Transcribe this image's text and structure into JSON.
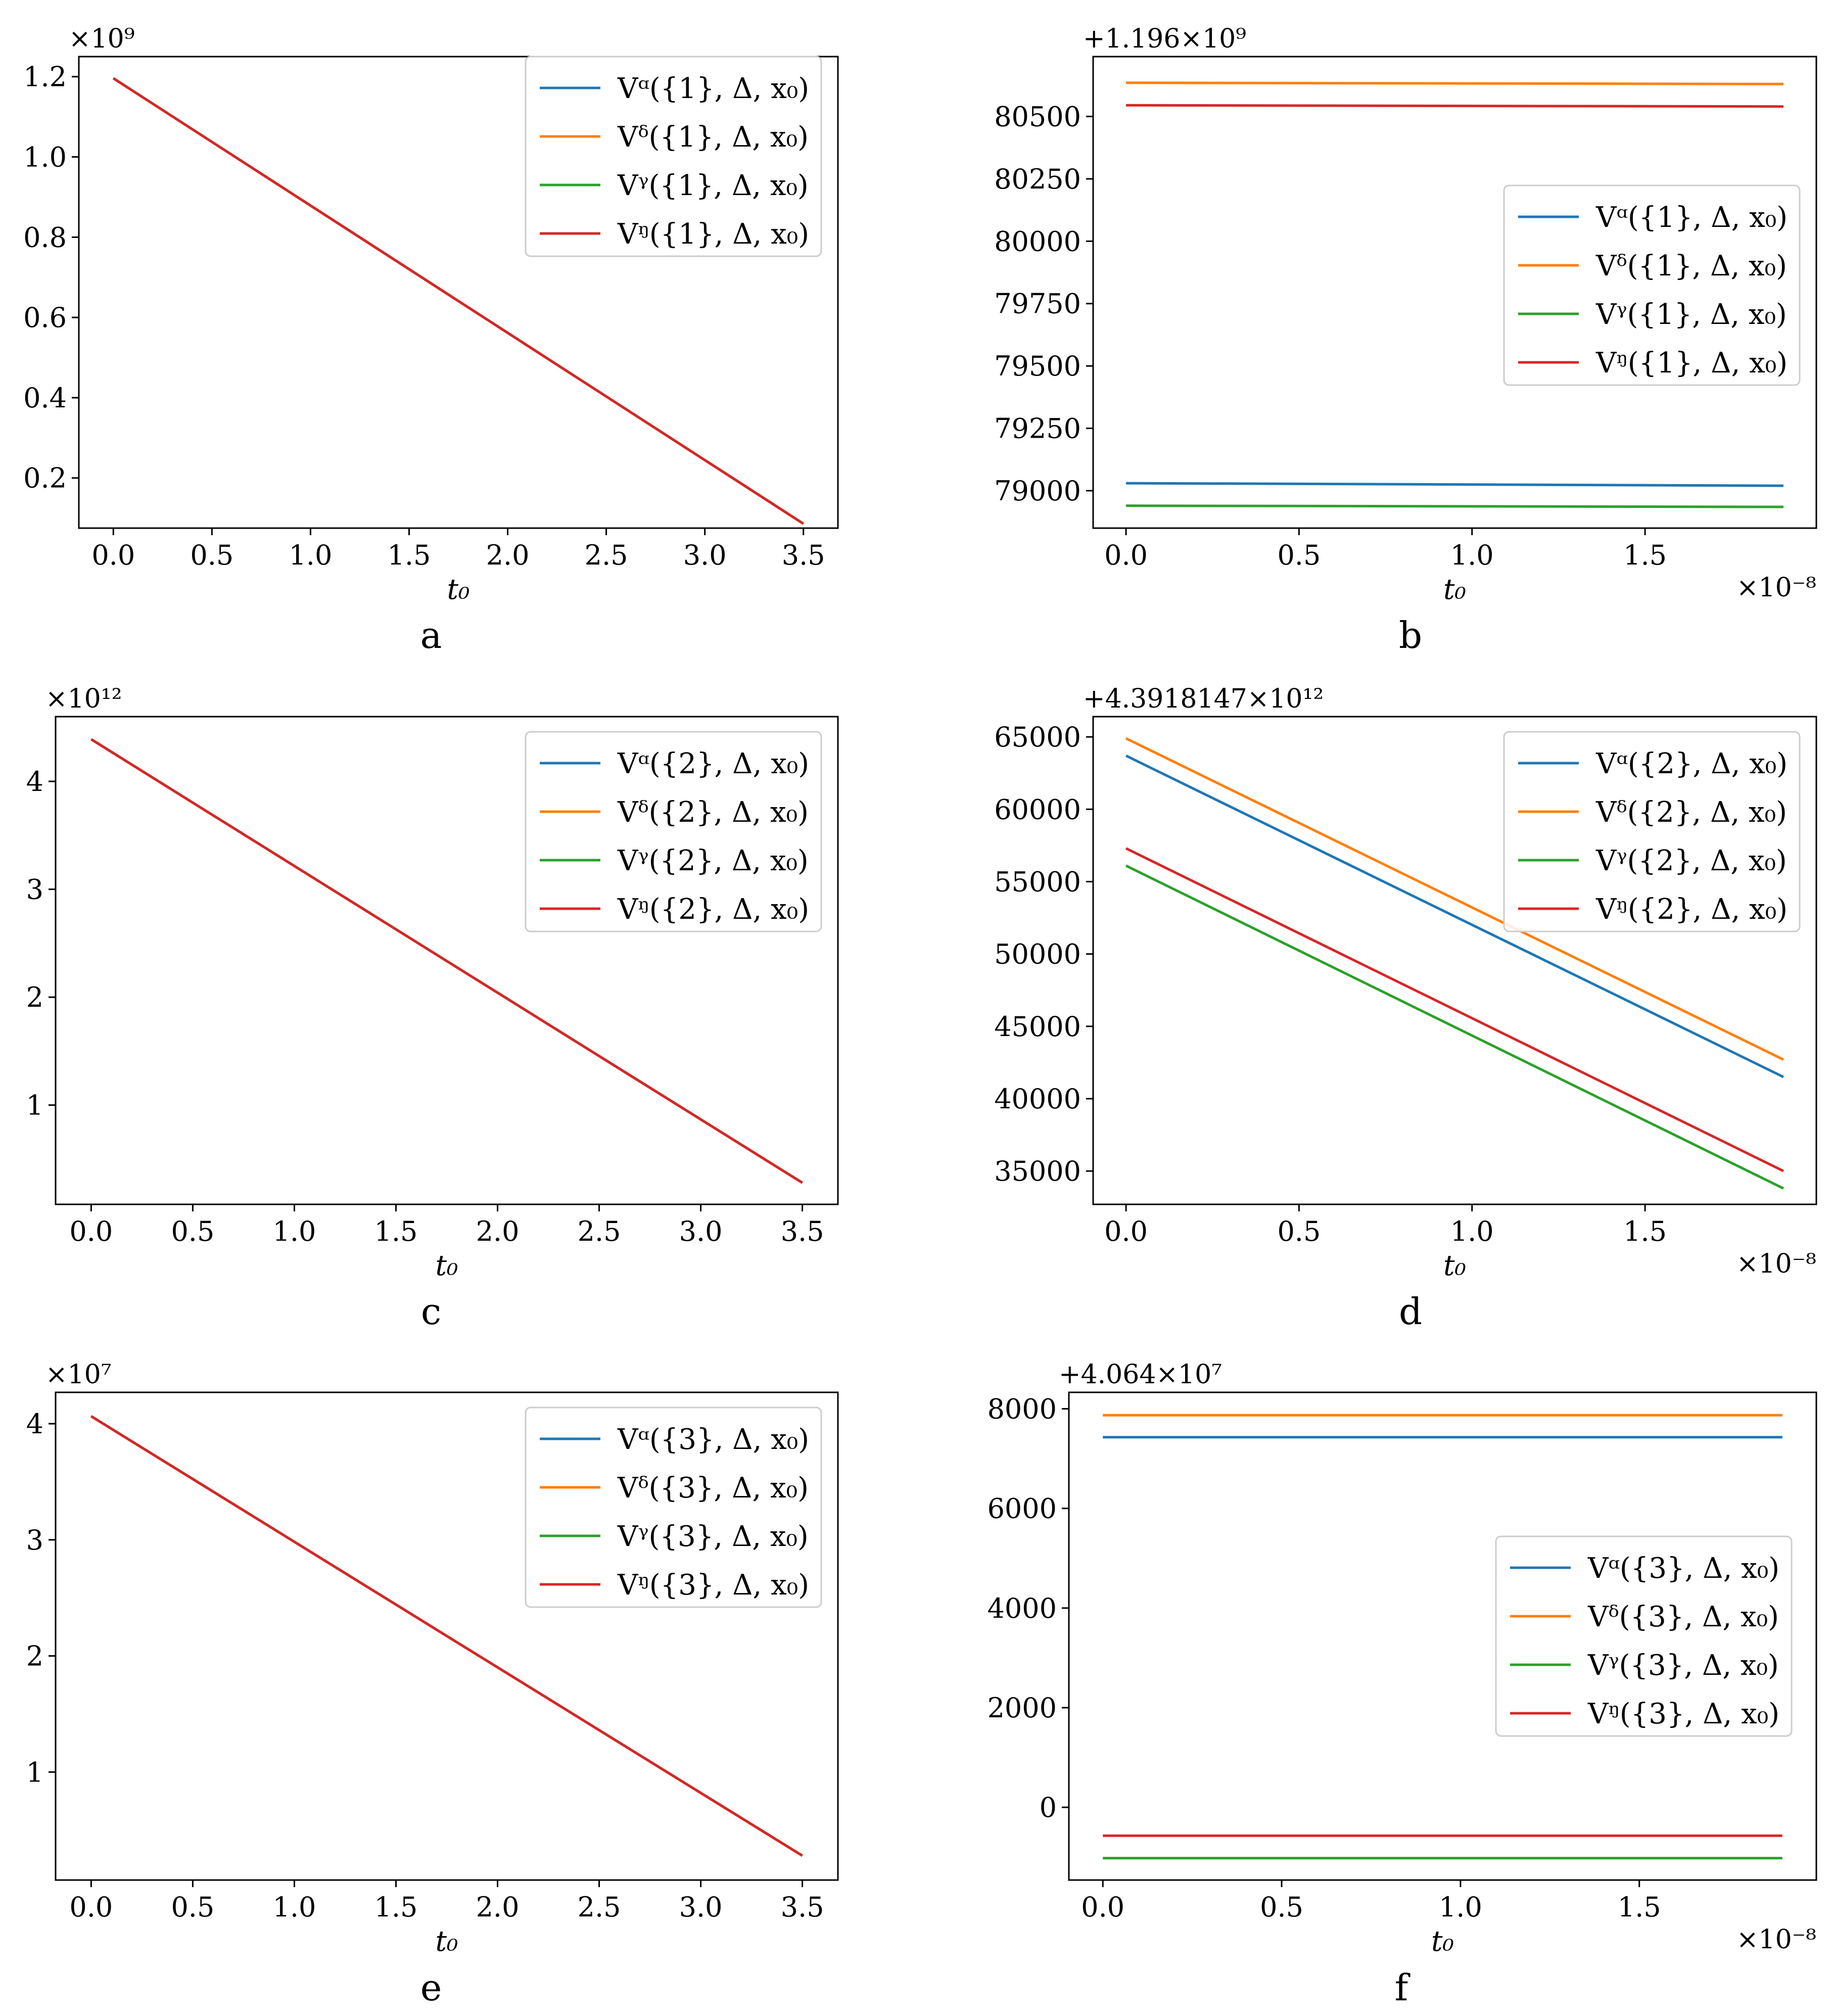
{
  "colors": {
    "alpha": "#1f77b4",
    "delta": "#ff7f0e",
    "zeta": "#2ca02c",
    "eta": "#d62728"
  },
  "chart_data": [
    {
      "panel": "a",
      "type": "line",
      "xlabel": "t₀",
      "ylabel": "",
      "xlim": [
        -0.175,
        3.675
      ],
      "ylim": [
        0.075,
        1.25
      ],
      "xticks": [
        0.0,
        0.5,
        1.0,
        1.5,
        2.0,
        2.5,
        3.0,
        3.5
      ],
      "xtick_labels": [
        "0.0",
        "0.5",
        "1.0",
        "1.5",
        "2.0",
        "2.5",
        "3.0",
        "3.5"
      ],
      "yticks": [
        0.2,
        0.4,
        0.6,
        0.8,
        1.0,
        1.2
      ],
      "ytick_labels": [
        "0.2",
        "0.4",
        "0.6",
        "0.8",
        "1.0",
        "1.2"
      ],
      "y_offset_text": "×10⁹",
      "x_offset_text": "",
      "legend_loc": "top-right",
      "series": [
        {
          "name": "Vᵅ({1}, Δ, x₀)",
          "color_key": "alpha",
          "x": [
            0.0,
            3.5
          ],
          "y": [
            1.196,
            0.086
          ]
        },
        {
          "name": "Vᵟ({1}, Δ, x₀)",
          "color_key": "delta",
          "x": [
            0.0,
            3.5
          ],
          "y": [
            1.196,
            0.086
          ]
        },
        {
          "name": "Vᵞ({1}, Δ, x₀)",
          "color_key": "zeta",
          "x": [
            0.0,
            3.5
          ],
          "y": [
            1.196,
            0.086
          ]
        },
        {
          "name": "Vᵑ({1}, Δ, x₀)",
          "color_key": "eta",
          "x": [
            0.0,
            3.5
          ],
          "y": [
            1.196,
            0.086
          ]
        }
      ]
    },
    {
      "panel": "b",
      "type": "line",
      "xlabel": "t₀",
      "ylabel": "",
      "xlim": [
        -0.095,
        1.995
      ],
      "ylim": [
        78850,
        80740
      ],
      "xticks": [
        0.0,
        0.5,
        1.0,
        1.5
      ],
      "xtick_labels": [
        "0.0",
        "0.5",
        "1.0",
        "1.5"
      ],
      "yticks": [
        79000,
        79250,
        79500,
        79750,
        80000,
        80250,
        80500
      ],
      "ytick_labels": [
        "79000",
        "79250",
        "79500",
        "79750",
        "80000",
        "80250",
        "80500"
      ],
      "y_offset_text": "+1.196×10⁹",
      "x_offset_text": "×10⁻⁸",
      "legend_loc": "center-right",
      "series": [
        {
          "name": "Vᵅ({1}, Δ, x₀)",
          "color_key": "alpha",
          "x": [
            0.0,
            1.9
          ],
          "y": [
            79030,
            79020
          ]
        },
        {
          "name": "Vᵟ({1}, Δ, x₀)",
          "color_key": "delta",
          "x": [
            0.0,
            1.9
          ],
          "y": [
            80635,
            80630
          ]
        },
        {
          "name": "Vᵞ({1}, Δ, x₀)",
          "color_key": "zeta",
          "x": [
            0.0,
            1.9
          ],
          "y": [
            78940,
            78935
          ]
        },
        {
          "name": "Vᵑ({1}, Δ, x₀)",
          "color_key": "eta",
          "x": [
            0.0,
            1.9
          ],
          "y": [
            80545,
            80540
          ]
        }
      ]
    },
    {
      "panel": "c",
      "type": "line",
      "xlabel": "t₀",
      "ylabel": "",
      "xlim": [
        -0.175,
        3.675
      ],
      "ylim": [
        0.08,
        4.6
      ],
      "xticks": [
        0.0,
        0.5,
        1.0,
        1.5,
        2.0,
        2.5,
        3.0,
        3.5
      ],
      "xtick_labels": [
        "0.0",
        "0.5",
        "1.0",
        "1.5",
        "2.0",
        "2.5",
        "3.0",
        "3.5"
      ],
      "yticks": [
        1,
        2,
        3,
        4
      ],
      "ytick_labels": [
        "1",
        "2",
        "3",
        "4"
      ],
      "y_offset_text": "×10¹²",
      "x_offset_text": "",
      "legend_loc": "top-right",
      "series": [
        {
          "name": "Vᵅ({2}, Δ, x₀)",
          "color_key": "alpha",
          "x": [
            0.0,
            3.5
          ],
          "y": [
            4.39,
            0.28
          ]
        },
        {
          "name": "Vᵟ({2}, Δ, x₀)",
          "color_key": "delta",
          "x": [
            0.0,
            3.5
          ],
          "y": [
            4.39,
            0.28
          ]
        },
        {
          "name": "Vᵞ({2}, Δ, x₀)",
          "color_key": "zeta",
          "x": [
            0.0,
            3.5
          ],
          "y": [
            4.39,
            0.28
          ]
        },
        {
          "name": "Vᵑ({2}, Δ, x₀)",
          "color_key": "eta",
          "x": [
            0.0,
            3.5
          ],
          "y": [
            4.39,
            0.28
          ]
        }
      ]
    },
    {
      "panel": "d",
      "type": "line",
      "xlabel": "t₀",
      "ylabel": "",
      "xlim": [
        -0.095,
        1.995
      ],
      "ylim": [
        32700,
        66400
      ],
      "xticks": [
        0.0,
        0.5,
        1.0,
        1.5
      ],
      "xtick_labels": [
        "0.0",
        "0.5",
        "1.0",
        "1.5"
      ],
      "yticks": [
        35000,
        40000,
        45000,
        50000,
        55000,
        60000,
        65000
      ],
      "ytick_labels": [
        "35000",
        "40000",
        "45000",
        "50000",
        "55000",
        "60000",
        "65000"
      ],
      "y_offset_text": "+4.3918147×10¹²",
      "x_offset_text": "×10⁻⁸",
      "legend_loc": "top-right",
      "series": [
        {
          "name": "Vᵅ({2}, Δ, x₀)",
          "color_key": "alpha",
          "x": [
            0.0,
            1.9
          ],
          "y": [
            63700,
            41500
          ]
        },
        {
          "name": "Vᵟ({2}, Δ, x₀)",
          "color_key": "delta",
          "x": [
            0.0,
            1.9
          ],
          "y": [
            64900,
            42700
          ]
        },
        {
          "name": "Vᵞ({2}, Δ, x₀)",
          "color_key": "zeta",
          "x": [
            0.0,
            1.9
          ],
          "y": [
            56100,
            33800
          ]
        },
        {
          "name": "Vᵑ({2}, Δ, x₀)",
          "color_key": "eta",
          "x": [
            0.0,
            1.9
          ],
          "y": [
            57300,
            35000
          ]
        }
      ]
    },
    {
      "panel": "e",
      "type": "line",
      "xlabel": "t₀",
      "ylabel": "",
      "xlim": [
        -0.175,
        3.675
      ],
      "ylim": [
        0.07,
        4.27
      ],
      "xticks": [
        0.0,
        0.5,
        1.0,
        1.5,
        2.0,
        2.5,
        3.0,
        3.5
      ],
      "xtick_labels": [
        "0.0",
        "0.5",
        "1.0",
        "1.5",
        "2.0",
        "2.5",
        "3.0",
        "3.5"
      ],
      "yticks": [
        1,
        2,
        3,
        4
      ],
      "ytick_labels": [
        "1",
        "2",
        "3",
        "4"
      ],
      "y_offset_text": "×10⁷",
      "x_offset_text": "",
      "legend_loc": "top-right",
      "series": [
        {
          "name": "Vᵅ({3}, Δ, x₀)",
          "color_key": "alpha",
          "x": [
            0.0,
            3.5
          ],
          "y": [
            4.064,
            0.28
          ]
        },
        {
          "name": "Vᵟ({3}, Δ, x₀)",
          "color_key": "delta",
          "x": [
            0.0,
            3.5
          ],
          "y": [
            4.064,
            0.28
          ]
        },
        {
          "name": "Vᵞ({3}, Δ, x₀)",
          "color_key": "zeta",
          "x": [
            0.0,
            3.5
          ],
          "y": [
            4.064,
            0.28
          ]
        },
        {
          "name": "Vᵑ({3}, Δ, x₀)",
          "color_key": "eta",
          "x": [
            0.0,
            3.5
          ],
          "y": [
            4.064,
            0.28
          ]
        }
      ]
    },
    {
      "panel": "f",
      "type": "line",
      "xlabel": "t₀",
      "ylabel": "",
      "xlim": [
        -0.095,
        1.995
      ],
      "ylim": [
        -1460,
        8330
      ],
      "xticks": [
        0.0,
        0.5,
        1.0,
        1.5
      ],
      "xtick_labels": [
        "0.0",
        "0.5",
        "1.0",
        "1.5"
      ],
      "yticks": [
        0,
        2000,
        4000,
        6000,
        8000
      ],
      "ytick_labels": [
        "0",
        "2000",
        "4000",
        "6000",
        "8000"
      ],
      "y_offset_text": "+4.064×10⁷",
      "x_offset_text": "×10⁻⁸",
      "legend_loc": "center-right",
      "series": [
        {
          "name": "Vᵅ({3}, Δ, x₀)",
          "color_key": "alpha",
          "x": [
            0.0,
            1.9
          ],
          "y": [
            7430,
            7430
          ]
        },
        {
          "name": "Vᵟ({3}, Δ, x₀)",
          "color_key": "delta",
          "x": [
            0.0,
            1.9
          ],
          "y": [
            7870,
            7870
          ]
        },
        {
          "name": "Vᵞ({3}, Δ, x₀)",
          "color_key": "zeta",
          "x": [
            0.0,
            1.9
          ],
          "y": [
            -1020,
            -1020
          ]
        },
        {
          "name": "Vᵑ({3}, Δ, x₀)",
          "color_key": "eta",
          "x": [
            0.0,
            1.9
          ],
          "y": [
            -570,
            -570
          ]
        }
      ]
    }
  ]
}
